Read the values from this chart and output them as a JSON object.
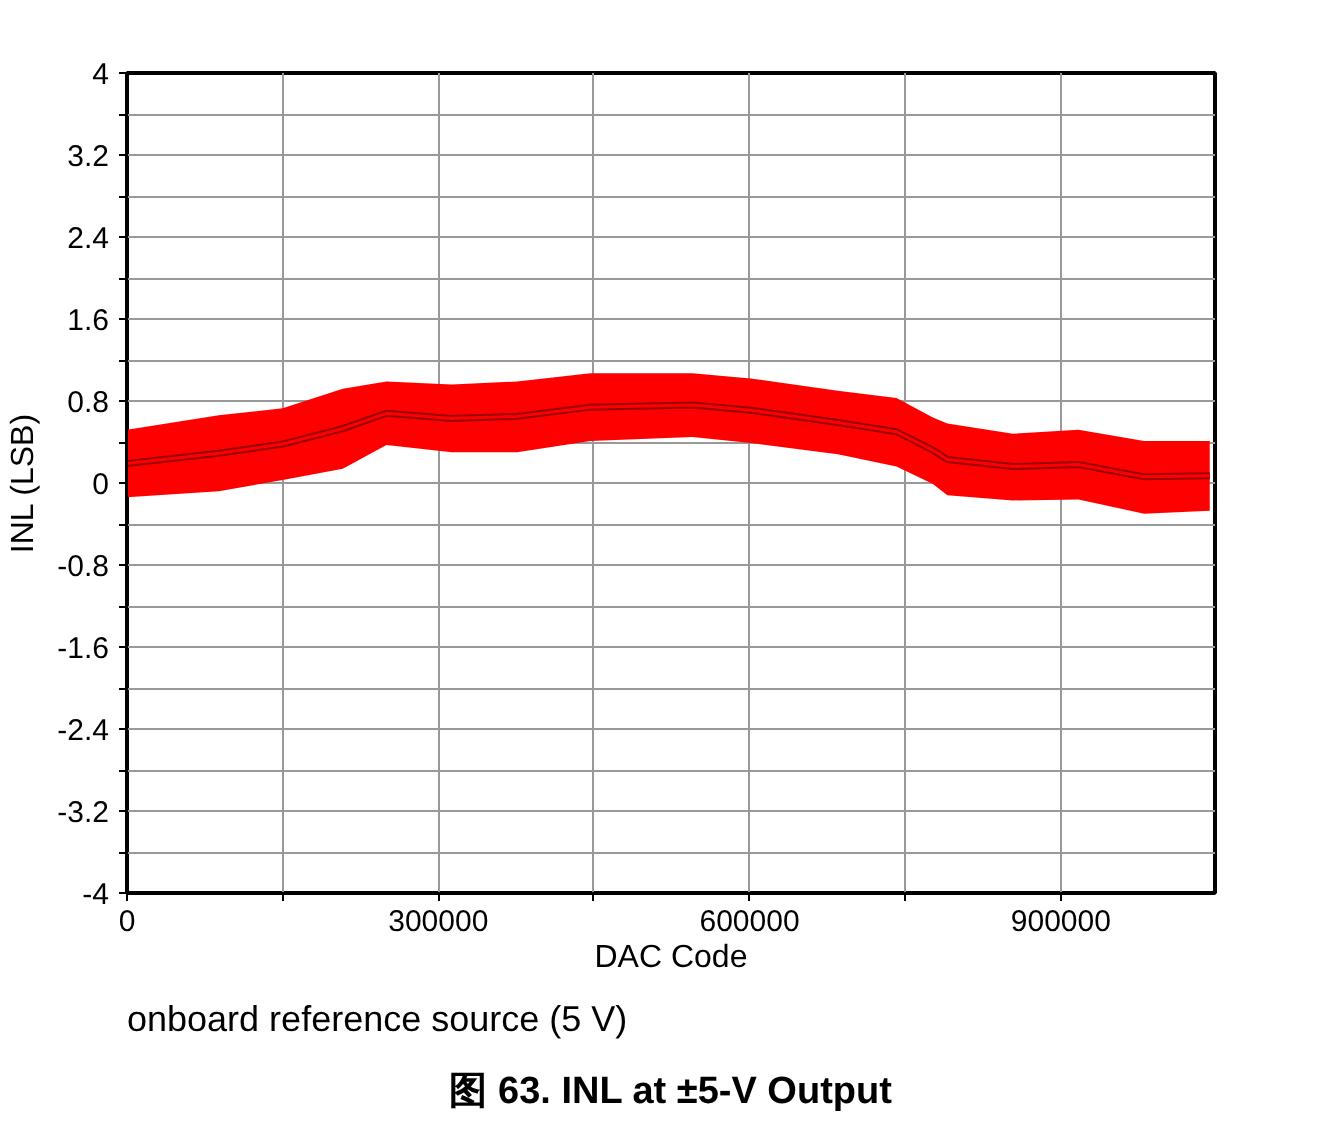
{
  "chart_data": {
    "type": "line",
    "title": "图 63. INL at ±5-V Output",
    "xlabel": "DAC Code",
    "ylabel": "INL (LSB)",
    "annotations": [
      "onboard reference source (5 V)"
    ],
    "x": [
      0,
      88500,
      150000,
      208000,
      250000,
      313000,
      376000,
      446600,
      545000,
      601000,
      685000,
      741600,
      776700,
      790600,
      853900,
      917000,
      980300,
      1043500
    ],
    "series": [
      {
        "color": "#ff0000",
        "values": [
          0.19,
          0.29,
          0.38,
          0.53,
          0.68,
          0.63,
          0.65,
          0.74,
          0.76,
          0.71,
          0.59,
          0.5,
          0.32,
          0.23,
          0.16,
          0.18,
          0.06,
          0.07
        ],
        "lower": [
          -0.14,
          -0.08,
          0.03,
          0.14,
          0.37,
          0.3,
          0.3,
          0.41,
          0.45,
          0.39,
          0.28,
          0.16,
          -0.01,
          -0.12,
          -0.17,
          -0.16,
          -0.3,
          -0.27
        ],
        "upper": [
          0.52,
          0.66,
          0.73,
          0.92,
          0.99,
          0.96,
          0.99,
          1.07,
          1.07,
          1.02,
          0.9,
          0.83,
          0.64,
          0.58,
          0.48,
          0.52,
          0.41,
          0.41
        ]
      }
    ],
    "xlim": [
      0,
      1048575
    ],
    "xticks": [
      0,
      {
        "value": 150000,
        "label": null
      },
      300000,
      {
        "value": 450000,
        "label": null
      },
      600000,
      {
        "value": 750000,
        "label": null
      },
      900000
    ],
    "ylim": [
      -4,
      4
    ],
    "yticks": [
      -4,
      {
        "value": -3.6,
        "label": null
      },
      -3.2,
      {
        "value": -2.8,
        "label": null
      },
      -2.4,
      {
        "value": -2.0,
        "label": null
      },
      -1.6,
      {
        "value": -1.2,
        "label": null
      },
      -0.8,
      {
        "value": -0.4,
        "label": null
      },
      0,
      {
        "value": 0.4,
        "label": null
      },
      0.8,
      {
        "value": 1.2,
        "label": null
      },
      1.6,
      {
        "value": 2.0,
        "label": null
      },
      2.4,
      {
        "value": 2.8,
        "label": null
      },
      3.2,
      {
        "value": 3.6,
        "label": null
      },
      4
    ],
    "grid": true
  }
}
